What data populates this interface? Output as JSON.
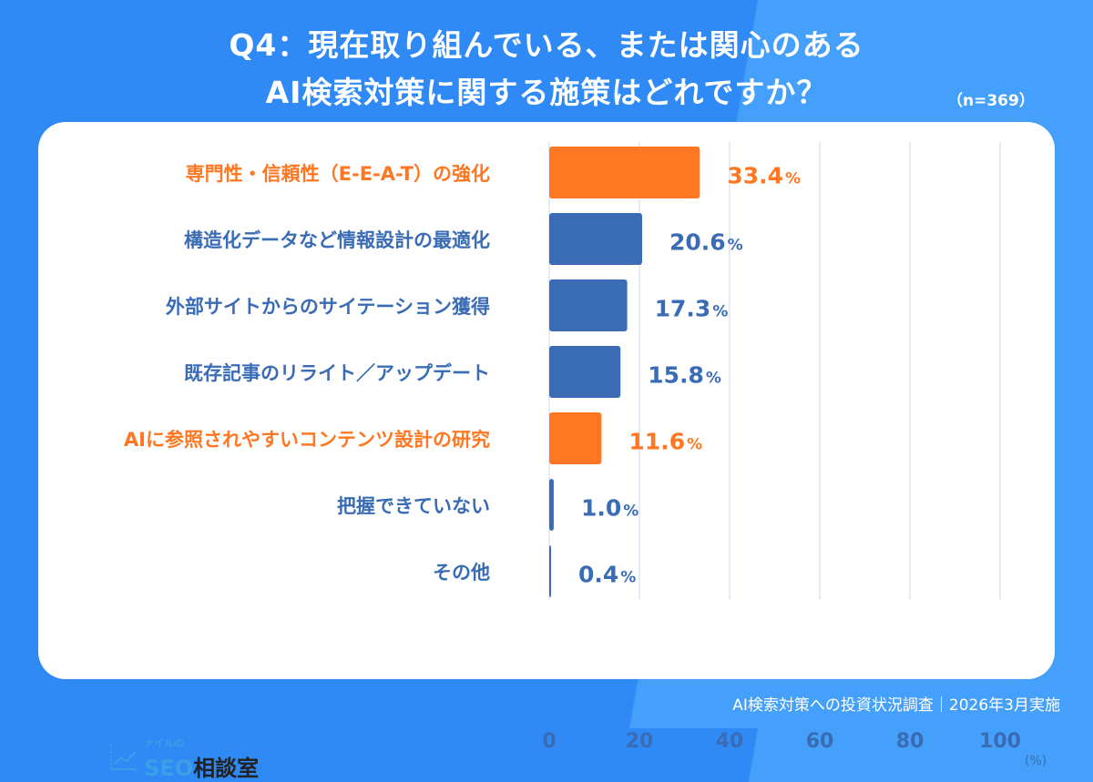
{
  "title_line1": "Q4：現在取り組んでいる、または関心のある",
  "title_line2": "AI検索対策に関する施策はどれですか？",
  "sample_size": "（n=369）",
  "footer": "AI検索対策への投資状況調査｜2026年3月実施",
  "logo": {
    "small": "ナイルの",
    "seo": "SEO",
    "rest": "相談室",
    "icon": "trend-chart-icon"
  },
  "colors": {
    "highlight": "#FF7722",
    "normal": "#3A6CB5",
    "background": "#2F8AF5",
    "grid": "#DDE6F2"
  },
  "chart_data": {
    "type": "bar",
    "orientation": "horizontal",
    "categories": [
      "専門性・信頼性（E-E-A-T）の強化",
      "構造化データなど情報設計の最適化",
      "外部サイトからのサイテーション獲得",
      "既存記事のリライト／アップデート",
      "AIに参照されやすいコンテンツ設計の研究",
      "把握できていない",
      "その他"
    ],
    "values": [
      33.4,
      20.6,
      17.3,
      15.8,
      11.6,
      1.0,
      0.4
    ],
    "value_labels": [
      "33.4",
      "20.6",
      "17.3",
      "15.8",
      "11.6",
      "1.0",
      "0.4"
    ],
    "value_suffix": "%",
    "highlighted": [
      true,
      false,
      false,
      false,
      true,
      false,
      false
    ],
    "xlim": [
      0,
      100
    ],
    "xticks": [
      "0",
      "20",
      "40",
      "60",
      "80",
      "100"
    ],
    "xunit": "(%)",
    "grid": true
  }
}
